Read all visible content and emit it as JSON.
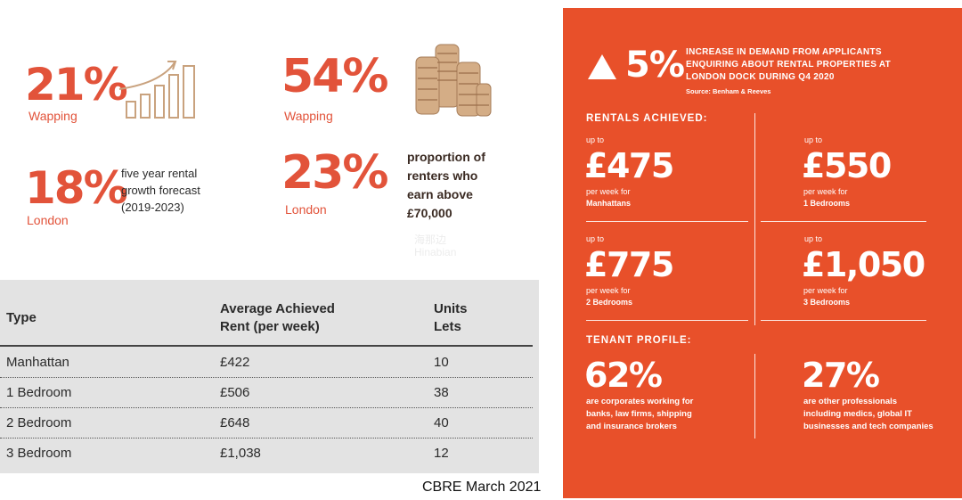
{
  "stats": {
    "wapping_growth": "21%",
    "wapping_growth_label": "Wapping",
    "london_growth": "18%",
    "london_growth_label": "London",
    "growth_caption_lines": [
      "five year rental",
      "growth forecast",
      "(2019-2023)"
    ],
    "wapping_high_earners": "54%",
    "wapping_high_earners_label": "Wapping",
    "london_high_earners": "23%",
    "london_high_earners_label": "London",
    "earners_caption_lines": [
      "proportion of",
      "renters who",
      "earn above",
      "£70,000"
    ]
  },
  "icons": {
    "growth": "bar-chart-arrow-icon",
    "coins": "coin-stacks-icon"
  },
  "watermark": [
    "海那边",
    "Hinabian"
  ],
  "table": {
    "headers": {
      "type": "Type",
      "rent_line1": "Average Achieved",
      "rent_line2": "Rent (per week)",
      "units_line1": "Units",
      "units_line2": "Lets"
    },
    "rows": [
      {
        "type": "Manhattan",
        "rent": "£422",
        "units": "10"
      },
      {
        "type": "1 Bedroom",
        "rent": "£506",
        "units": "38"
      },
      {
        "type": "2 Bedroom",
        "rent": "£648",
        "units": "40"
      },
      {
        "type": "3 Bedroom",
        "rent": "£1,038",
        "units": "12"
      }
    ]
  },
  "source": "CBRE March 2021",
  "panel": {
    "demand_pct": "5%",
    "headline_lines": [
      "INCREASE IN DEMAND FROM APPLICANTS",
      "ENQUIRING ABOUT RENTAL PROPERTIES AT",
      "LONDON DOCK DURING Q4 2020"
    ],
    "headline_source": "Source: Benham & Reeves",
    "rentals_title": "RENTALS ACHIEVED:",
    "rentals": [
      {
        "upto": "up to",
        "price": "£475",
        "line1": "per week for",
        "line2": "Manhattans"
      },
      {
        "upto": "up to",
        "price": "£550",
        "line1": "per week for",
        "line2": "1 Bedrooms"
      },
      {
        "upto": "up to",
        "price": "£775",
        "line1": "per week for",
        "line2": "2 Bedrooms"
      },
      {
        "upto": "up to",
        "price": "£1,050",
        "line1": "per week for",
        "line2": "3 Bedrooms"
      }
    ],
    "tenant_title": "TENANT PROFILE:",
    "tenants": [
      {
        "pct": "62%",
        "lines": [
          "are corporates working for",
          "banks, law firms, shipping",
          "and insurance brokers"
        ]
      },
      {
        "pct": "27%",
        "lines": [
          "are other professionals",
          "including medics, global IT",
          "businesses and tech companies"
        ]
      }
    ]
  },
  "colors": {
    "accent": "#e2533a",
    "panel": "#e8502a",
    "table_bg": "#e3e3e3",
    "coin": "#c9a27e"
  }
}
